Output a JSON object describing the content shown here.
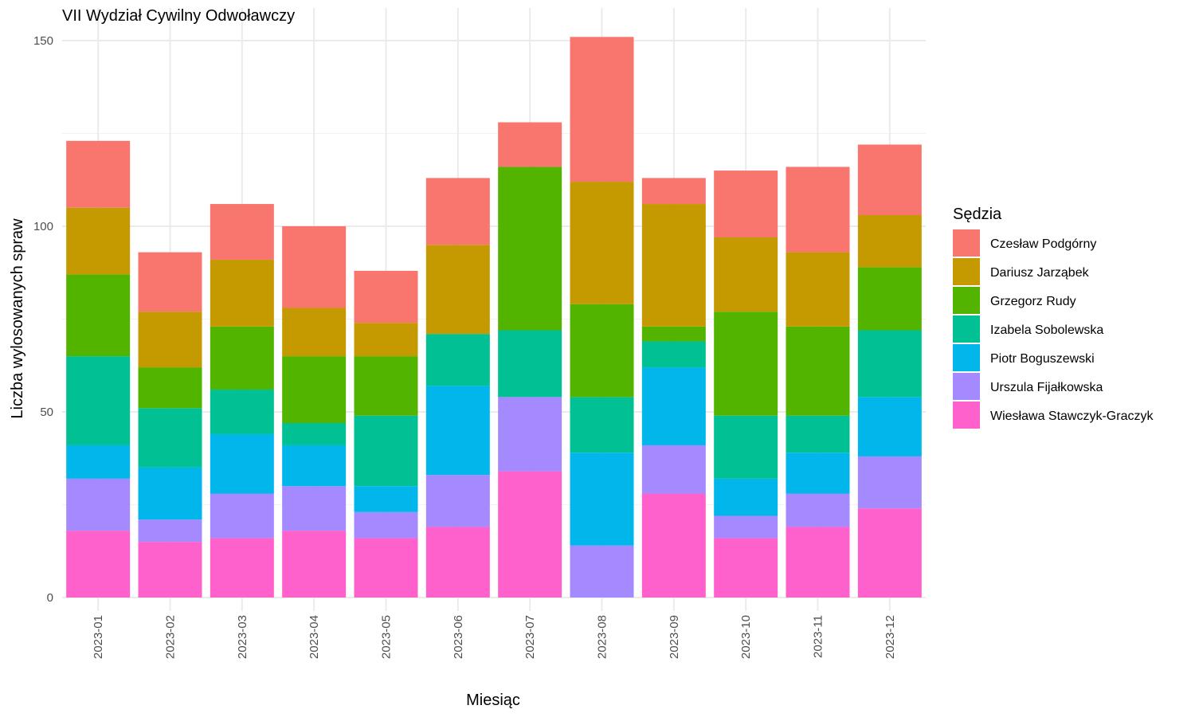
{
  "chart_data": {
    "type": "bar",
    "stacked": true,
    "title": "VII Wydział Cywilny Odwoławczy",
    "xlabel": "Miesiąc",
    "ylabel": "Liczba wylosowanych spraw",
    "ylim": [
      0,
      157
    ],
    "y_ticks": [
      0,
      50,
      100,
      150
    ],
    "grid": true,
    "legend_position": "right",
    "legend_title": "Sędzia",
    "categories": [
      "2023-01",
      "2023-02",
      "2023-03",
      "2023-04",
      "2023-05",
      "2023-06",
      "2023-07",
      "2023-08",
      "2023-09",
      "2023-10",
      "2023-11",
      "2023-12"
    ],
    "series": [
      {
        "name": "Wiesława Stawczyk-Graczyk",
        "color": "#FF61CC",
        "values": [
          18,
          15,
          16,
          18,
          16,
          19,
          34,
          0,
          28,
          16,
          19,
          24
        ]
      },
      {
        "name": "Urszula Fijałkowska",
        "color": "#A58AFF",
        "values": [
          14,
          6,
          12,
          12,
          7,
          14,
          20,
          14,
          13,
          6,
          9,
          14
        ]
      },
      {
        "name": "Piotr Boguszewski",
        "color": "#00B6EB",
        "values": [
          9,
          14,
          16,
          11,
          7,
          24,
          0,
          25,
          21,
          10,
          11,
          16
        ]
      },
      {
        "name": "Izabela Sobolewska",
        "color": "#00C094",
        "values": [
          24,
          16,
          12,
          6,
          19,
          14,
          18,
          15,
          7,
          17,
          10,
          18
        ]
      },
      {
        "name": "Grzegorz Rudy",
        "color": "#53B400",
        "values": [
          22,
          11,
          17,
          18,
          16,
          0,
          44,
          25,
          4,
          28,
          24,
          17
        ]
      },
      {
        "name": "Dariusz Jarząbek",
        "color": "#C49A00",
        "values": [
          18,
          15,
          18,
          13,
          9,
          24,
          0,
          33,
          33,
          20,
          20,
          14
        ]
      },
      {
        "name": "Czesław Podgórny",
        "color": "#F8766D",
        "values": [
          18,
          16,
          15,
          22,
          14,
          18,
          12,
          39,
          7,
          18,
          23,
          19
        ]
      }
    ],
    "legend_order": [
      "Czesław Podgórny",
      "Dariusz Jarząbek",
      "Grzegorz Rudy",
      "Izabela Sobolewska",
      "Piotr Boguszewski",
      "Urszula Fijałkowska",
      "Wiesława Stawczyk-Graczyk"
    ]
  }
}
